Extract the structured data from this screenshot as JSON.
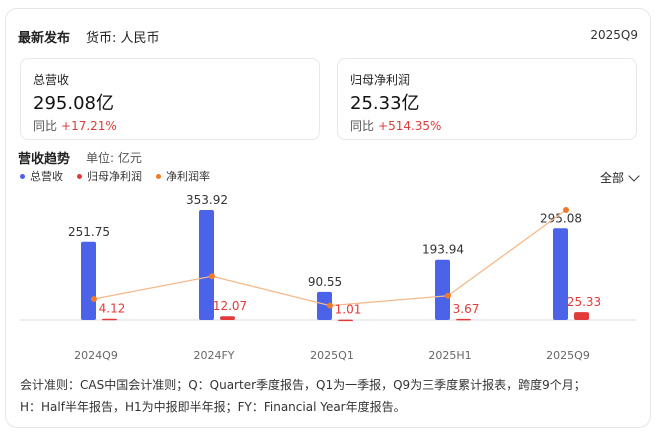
{
  "header": {
    "title": "最新发布",
    "currency": "货币: 人民币",
    "period": "2025Q9"
  },
  "metrics": [
    {
      "label": "总营收",
      "value": "295.08亿",
      "yoy_label": "同比",
      "yoy_value": "+17.21%"
    },
    {
      "label": "归母净利润",
      "value": "25.33亿",
      "yoy_label": "同比",
      "yoy_value": "+514.35%"
    }
  ],
  "trend": {
    "title": "营收趋势",
    "unit": "单位: 亿元",
    "range_label": "全部"
  },
  "colors": {
    "revenue": "#4a63e8",
    "net_profit": "#e23a3a",
    "margin": "#f07a2a",
    "positive": "#e03c3c"
  },
  "chart_data": {
    "type": "bar",
    "categories": [
      "2024Q9",
      "2024FY",
      "2025Q1",
      "2025H1",
      "2025Q9"
    ],
    "series": [
      {
        "name": "总营收",
        "kind": "bar",
        "values": [
          251.75,
          353.92,
          90.55,
          193.94,
          295.08
        ],
        "labels": [
          "251.75",
          "353.92",
          "90.55",
          "193.94",
          "295.08"
        ]
      },
      {
        "name": "归母净利润",
        "kind": "bar",
        "values": [
          4.12,
          12.07,
          1.01,
          3.67,
          25.33
        ],
        "labels": [
          "4.12",
          "12.07",
          "1.01",
          "3.67",
          "25.33"
        ]
      },
      {
        "name": "净利润率",
        "kind": "line",
        "values": [
          1.64,
          3.41,
          1.12,
          1.89,
          8.58
        ]
      }
    ],
    "ylim": [
      0,
      353.92
    ],
    "y2lim": [
      0,
      8.58
    ],
    "legend": "top-left"
  },
  "footnote": {
    "line1": "会计准则：CAS中国会计准则；Q：Quarter季度报告，Q1为一季报，Q9为三季度累计报表，跨度9个月；",
    "line2": "H：Half半年报告，H1为中报即半年报；FY：Financial Year年度报告。"
  }
}
